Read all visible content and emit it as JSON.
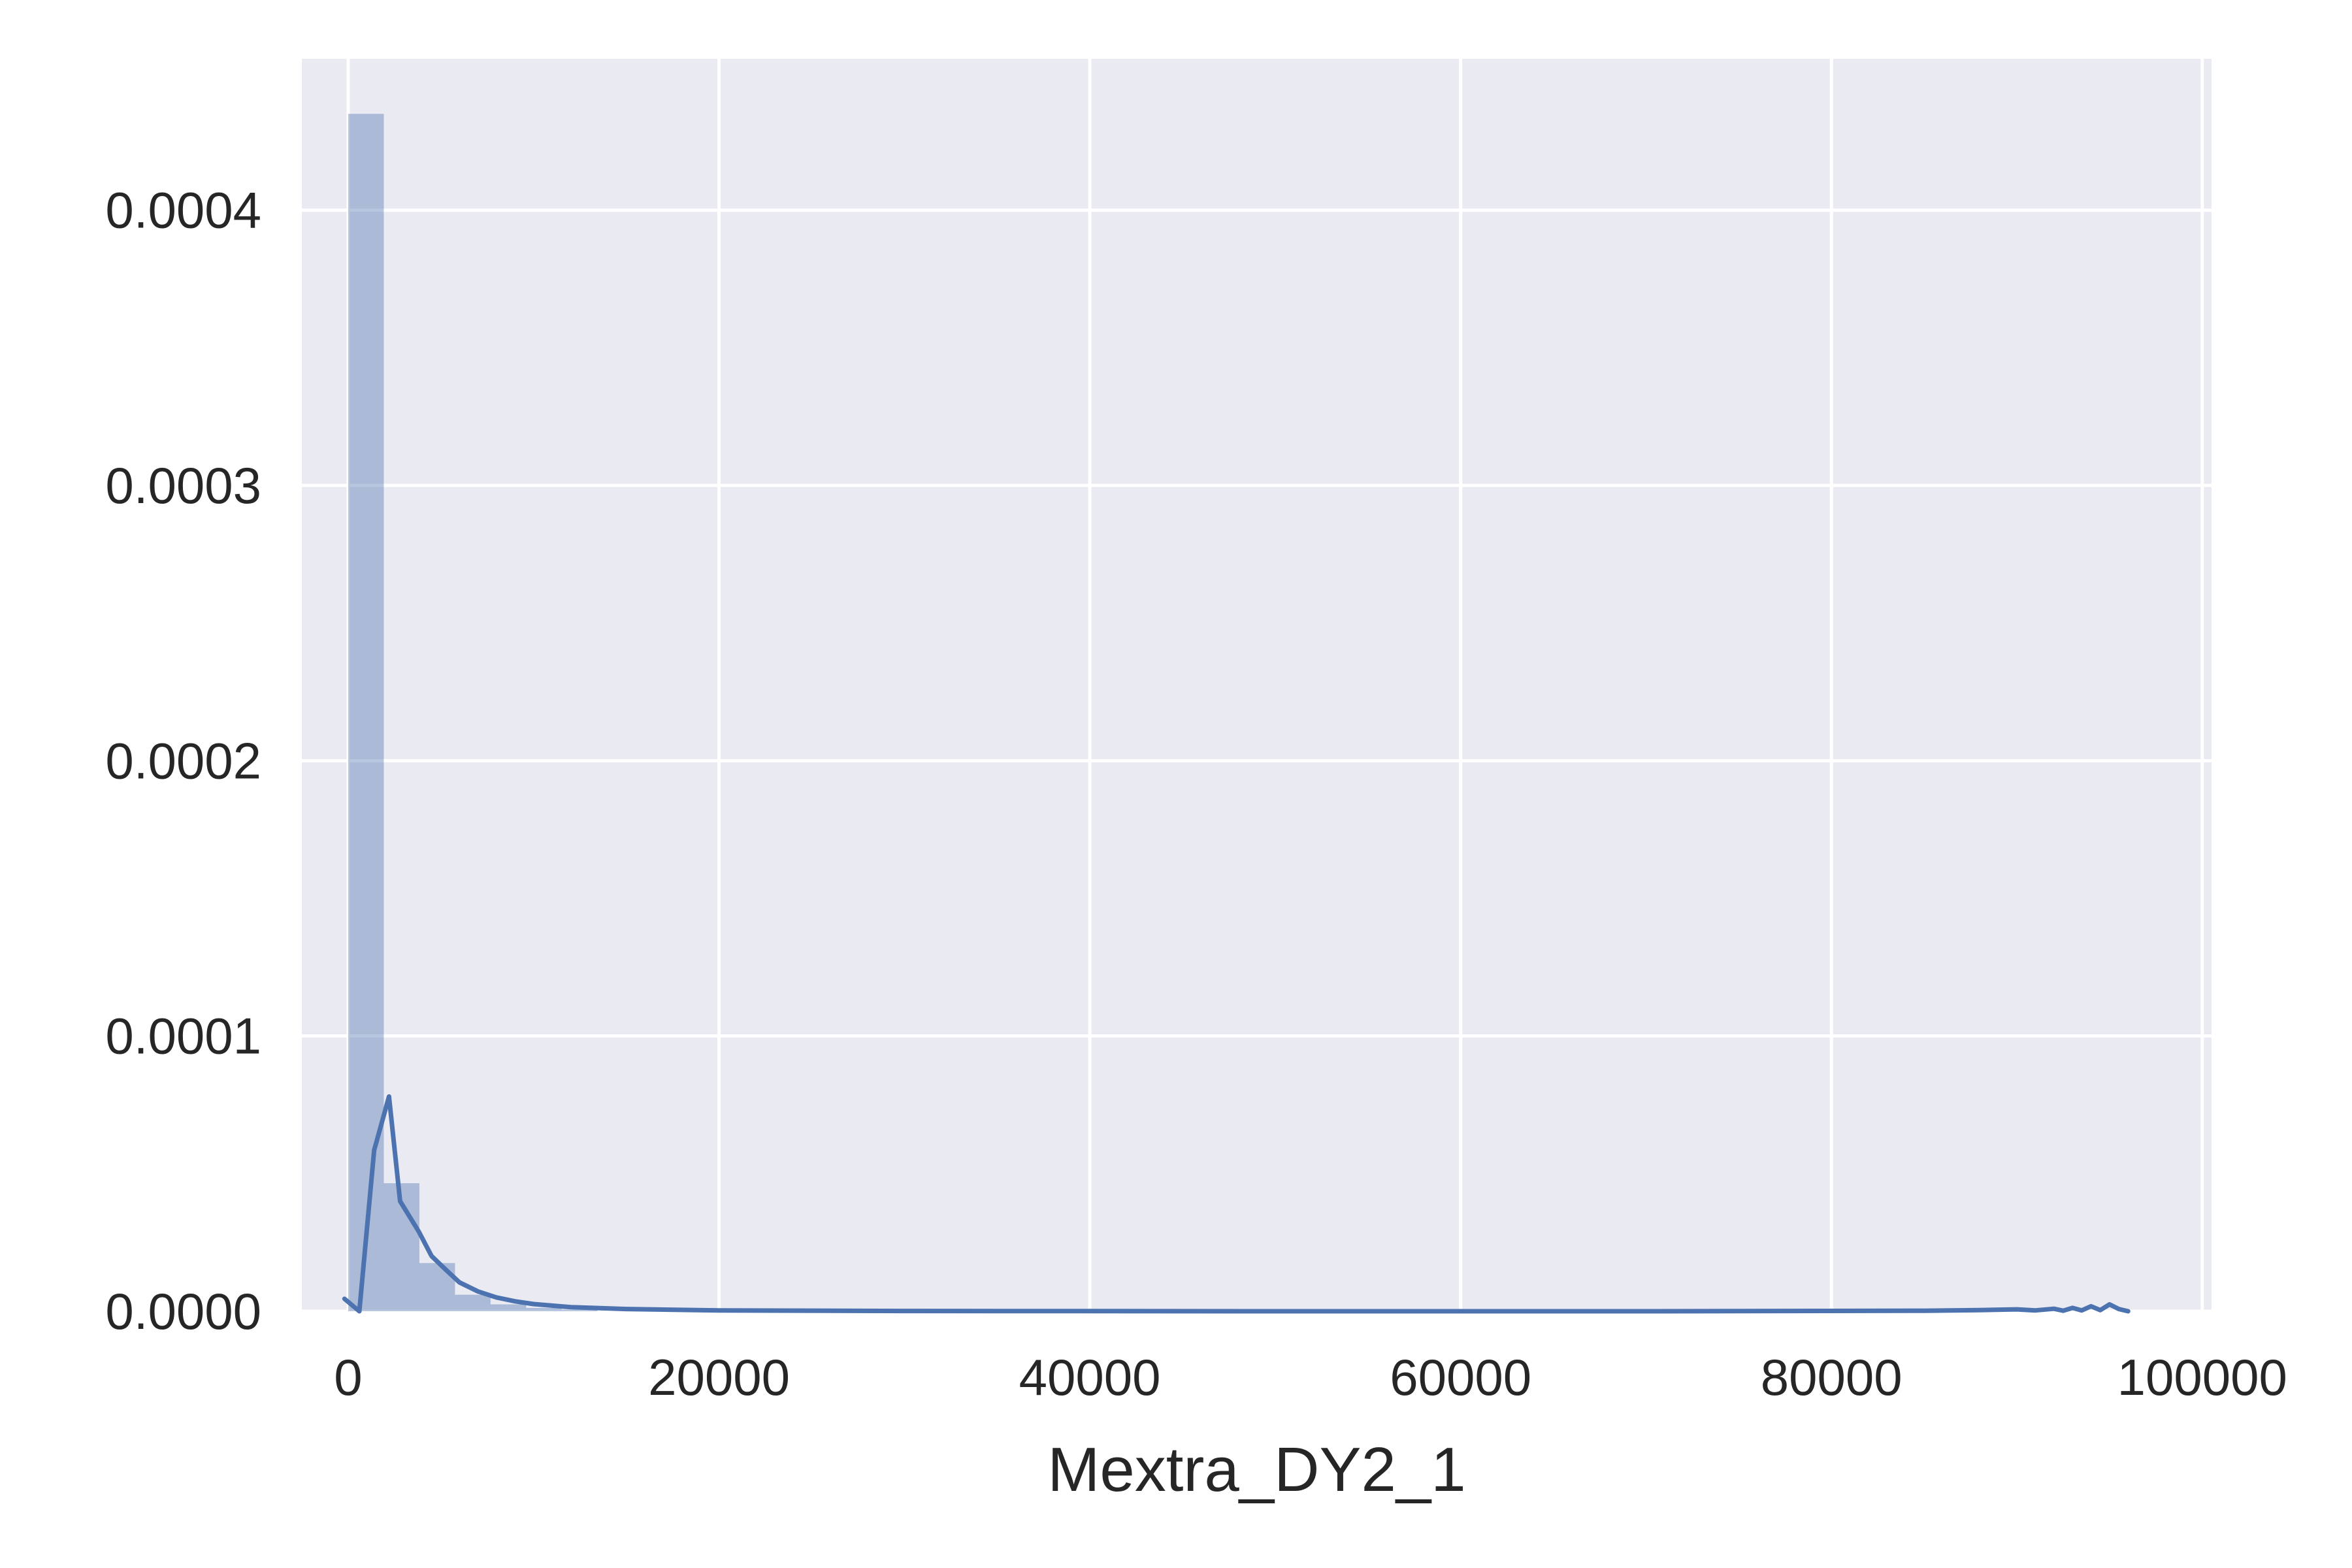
{
  "chart_data": {
    "type": "bar",
    "title": "",
    "xlabel": "Mextra_DY2_1",
    "ylabel": "",
    "xlim": [
      -2500,
      100500
    ],
    "ylim": [
      0,
      0.000455
    ],
    "grid": true,
    "x_ticks": [
      {
        "value": 0,
        "label": "0"
      },
      {
        "value": 20000,
        "label": "20000"
      },
      {
        "value": 40000,
        "label": "40000"
      },
      {
        "value": 60000,
        "label": "60000"
      },
      {
        "value": 80000,
        "label": "80000"
      },
      {
        "value": 100000,
        "label": "100000"
      }
    ],
    "y_ticks": [
      {
        "value": 0.0,
        "label": "0.0000"
      },
      {
        "value": 0.0001,
        "label": "0.0001"
      },
      {
        "value": 0.0002,
        "label": "0.0002"
      },
      {
        "value": 0.0003,
        "label": "0.0003"
      },
      {
        "value": 0.0004,
        "label": "0.0004"
      }
    ],
    "histogram": {
      "bin_width": 1920,
      "bins": [
        {
          "x0": 0,
          "x1": 1920,
          "density": 0.000435
        },
        {
          "x0": 1920,
          "x1": 3840,
          "density": 4.65e-05
        },
        {
          "x0": 3840,
          "x1": 5760,
          "density": 1.75e-05
        },
        {
          "x0": 5760,
          "x1": 7680,
          "density": 6e-06
        },
        {
          "x0": 7680,
          "x1": 9600,
          "density": 2.5e-06
        },
        {
          "x0": 9600,
          "x1": 11520,
          "density": 1.2e-06
        },
        {
          "x0": 11520,
          "x1": 13440,
          "density": 6e-07
        }
      ]
    },
    "kde": {
      "x": [
        -200,
        600,
        1400,
        2200,
        2800,
        3800,
        4500,
        5200,
        6000,
        7000,
        8000,
        9000,
        10000,
        12000,
        15000,
        20000,
        30000,
        50000,
        70000,
        85000,
        88000,
        90000,
        91000,
        92000,
        92500,
        93000,
        93500,
        94000,
        94500,
        95000,
        95500,
        96000
      ],
      "y": [
        4.5e-06,
        0.0,
        5.85e-05,
        7.8e-05,
        4e-05,
        2.9e-05,
        2e-05,
        1.55e-05,
        1.05e-05,
        7.2e-06,
        5e-06,
        3.6e-06,
        2.6e-06,
        1.5e-06,
        8e-07,
        3e-07,
        1e-07,
        0.0,
        0.0,
        2e-07,
        4e-07,
        7e-07,
        3e-07,
        9e-07,
        2e-07,
        1.2e-06,
        3e-07,
        1.8e-06,
        4e-07,
        2.5e-06,
        8e-07,
        0.0
      ]
    },
    "colors": {
      "plot_background": "#eaeaf2",
      "grid": "#ffffff",
      "bar_fill": "#4c72b0",
      "bar_opacity": 0.4,
      "line": "#4c72b0",
      "text": "#262626"
    }
  }
}
